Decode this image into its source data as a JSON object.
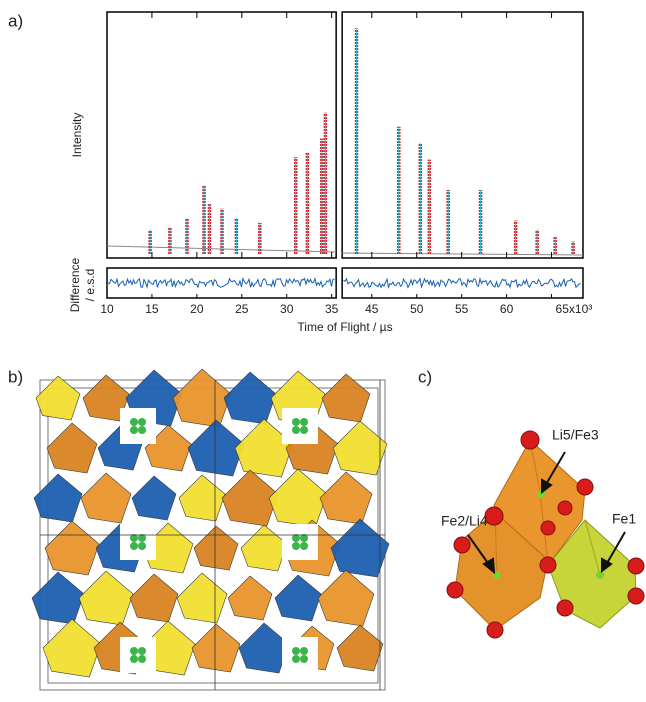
{
  "panel_labels": [
    "a)",
    "b)",
    "c)"
  ],
  "chart_data": {
    "type": "stem",
    "xlabel": "Time of Flight / µs",
    "ylabel": "Intensity",
    "difference_label": [
      "Difference",
      "/ e.s.d"
    ],
    "xlim": [
      10,
      68.5
    ],
    "x_break": [
      35.5,
      41.7
    ],
    "xticks": [
      10,
      15,
      20,
      25,
      30,
      35,
      45,
      50,
      55,
      60,
      {
        "value": 65,
        "label": "65x10³"
      }
    ],
    "ylim": [
      0,
      105
    ],
    "x": [
      14.8,
      17,
      18.9,
      20.8,
      21.4,
      22.8,
      24.4,
      27,
      31,
      32.3,
      33.9,
      34.3,
      43.3,
      48,
      50.4,
      51.4,
      53.5,
      57.1,
      61,
      63.4,
      65.4,
      67.4
    ],
    "values": [
      12,
      13,
      17,
      31,
      23,
      21,
      17,
      15,
      43,
      45,
      51,
      62,
      98,
      56,
      49,
      42,
      29,
      29,
      16,
      12,
      9,
      7
    ],
    "color": "#d9232a",
    "fit_color": "#22c4d8"
  },
  "structure_labels": [
    "Li5/Fe3",
    "Fe2/Li4",
    "Fe1"
  ]
}
